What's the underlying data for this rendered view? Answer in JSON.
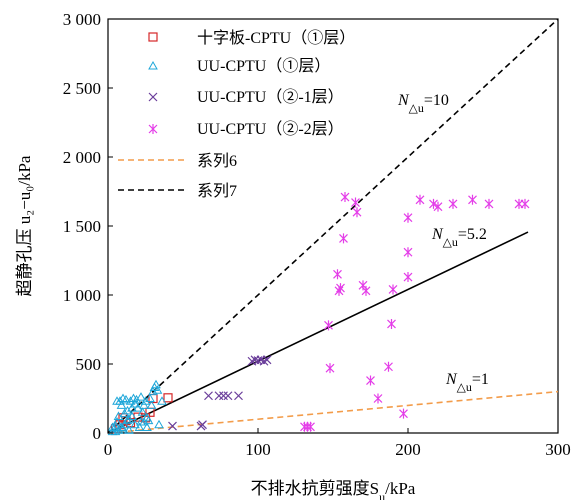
{
  "chart_data": {
    "type": "scatter",
    "xlabel": "不排水抗剪强度S",
    "xlabel_sub": "u",
    "xlabel_unit": "/kPa",
    "ylabel": "超静孔压 u₂−u₀/kPa",
    "xlim": [
      0,
      300
    ],
    "ylim": [
      0,
      3000
    ],
    "x_ticks": [
      0,
      100,
      200,
      300
    ],
    "x_tick_labels": [
      "0",
      "100",
      "200",
      "300"
    ],
    "y_ticks": [
      0,
      500,
      1000,
      1500,
      2000,
      2500,
      3000
    ],
    "y_tick_labels": [
      "0",
      "500",
      "1 000",
      "1 500",
      "2 000",
      "2 500",
      "3 000"
    ],
    "grid": false,
    "legend_position": "top-left",
    "series": [
      {
        "name": "十字板-CPTU（①层）",
        "marker": "square",
        "color": "#d62728",
        "points": [
          [
            5,
            30
          ],
          [
            8,
            60
          ],
          [
            10,
            110
          ],
          [
            12,
            90
          ],
          [
            15,
            75
          ],
          [
            20,
            115
          ],
          [
            25,
            110
          ],
          [
            28,
            150
          ],
          [
            30,
            250
          ],
          [
            40,
            255
          ]
        ]
      },
      {
        "name": "UU-CPTU（①层）",
        "marker": "triangle",
        "color": "#1fa7d9",
        "points": [
          [
            3,
            10
          ],
          [
            4,
            30
          ],
          [
            5,
            50
          ],
          [
            6,
            80
          ],
          [
            7,
            20
          ],
          [
            8,
            230
          ],
          [
            9,
            40
          ],
          [
            10,
            250
          ],
          [
            11,
            60
          ],
          [
            12,
            240
          ],
          [
            13,
            90
          ],
          [
            14,
            20
          ],
          [
            15,
            230
          ],
          [
            16,
            120
          ],
          [
            17,
            250
          ],
          [
            18,
            60
          ],
          [
            19,
            240
          ],
          [
            20,
            180
          ],
          [
            21,
            40
          ],
          [
            22,
            260
          ],
          [
            23,
            150
          ],
          [
            24,
            80
          ],
          [
            25,
            230
          ],
          [
            26,
            40
          ],
          [
            27,
            90
          ],
          [
            28,
            250
          ],
          [
            29,
            200
          ],
          [
            30,
            300
          ],
          [
            31,
            330
          ],
          [
            32,
            350
          ],
          [
            33,
            310
          ],
          [
            34,
            60
          ],
          [
            36,
            230
          ],
          [
            6,
            230
          ],
          [
            9,
            200
          ],
          [
            11,
            140
          ],
          [
            13,
            160
          ],
          [
            16,
            180
          ],
          [
            18,
            210
          ],
          [
            22,
            80
          ],
          [
            24,
            200
          ],
          [
            26,
            110
          ],
          [
            3,
            40
          ],
          [
            5,
            10
          ],
          [
            7,
            120
          ],
          [
            10,
            30
          ],
          [
            14,
            100
          ]
        ]
      },
      {
        "name": "UU-CPTU（②-1层）",
        "marker": "x",
        "color": "#6a3d9a",
        "points": [
          [
            43,
            50
          ],
          [
            62,
            50
          ],
          [
            63,
            60
          ],
          [
            67,
            270
          ],
          [
            74,
            270
          ],
          [
            77,
            270
          ],
          [
            80,
            270
          ],
          [
            87,
            270
          ],
          [
            96,
            520
          ],
          [
            98,
            530
          ],
          [
            100,
            525
          ],
          [
            102,
            530
          ],
          [
            104,
            520
          ],
          [
            106,
            530
          ]
        ]
      },
      {
        "name": "UU-CPTU（②-2层）",
        "marker": "asterisk",
        "color": "#e43ee8",
        "points": [
          [
            131,
            45
          ],
          [
            133,
            45
          ],
          [
            135,
            45
          ],
          [
            147,
            780
          ],
          [
            148,
            470
          ],
          [
            153,
            1150
          ],
          [
            154,
            1030
          ],
          [
            155,
            1050
          ],
          [
            157,
            1410
          ],
          [
            158,
            1710
          ],
          [
            165,
            1670
          ],
          [
            166,
            1600
          ],
          [
            170,
            1070
          ],
          [
            172,
            1030
          ],
          [
            175,
            380
          ],
          [
            180,
            250
          ],
          [
            187,
            480
          ],
          [
            189,
            790
          ],
          [
            190,
            1040
          ],
          [
            197,
            140
          ],
          [
            200,
            1310
          ],
          [
            200,
            1560
          ],
          [
            200,
            1130
          ],
          [
            208,
            1690
          ],
          [
            217,
            1660
          ],
          [
            220,
            1640
          ],
          [
            230,
            1660
          ],
          [
            243,
            1690
          ],
          [
            254,
            1660
          ],
          [
            274,
            1660
          ],
          [
            278,
            1660
          ]
        ]
      }
    ],
    "reference_lines": [
      {
        "name": "系列6",
        "slope": 1,
        "style": "dashed",
        "color": "#f39c4a"
      },
      {
        "name": "系列7",
        "slope": 10,
        "style": "dashed",
        "color": "#000000"
      },
      {
        "name": "",
        "slope": 5.2,
        "style": "solid",
        "color": "#000000"
      }
    ],
    "annotations": {
      "n10": {
        "prefix": "N",
        "sub": "△u",
        "suffix": "=10"
      },
      "n52": {
        "prefix": "N",
        "sub": "△u",
        "suffix": "=5.2"
      },
      "n1": {
        "prefix": "N",
        "sub": "△u",
        "suffix": "=1"
      }
    }
  }
}
